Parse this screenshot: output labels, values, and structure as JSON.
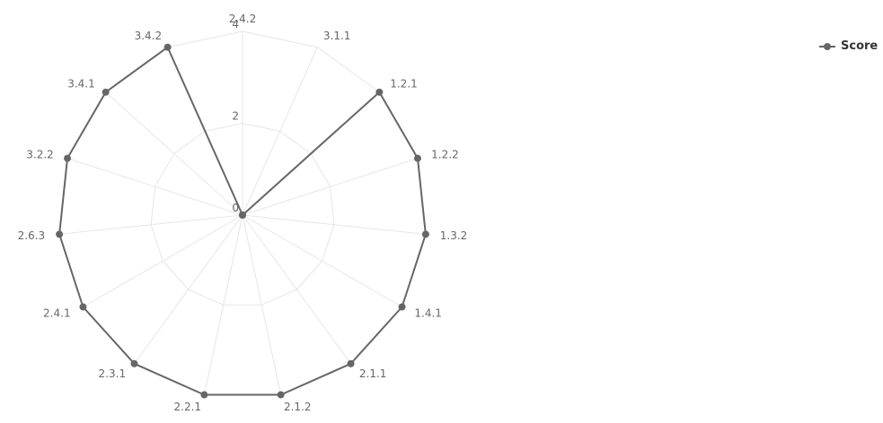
{
  "chart_data": {
    "type": "radar",
    "categories": [
      "2.4.2",
      "3.1.1",
      "1.2.1",
      "1.2.2",
      "1.3.2",
      "1.4.1",
      "2.1.1",
      "2.1.2",
      "2.2.1",
      "2.3.1",
      "2.4.1",
      "2.6.3",
      "3.2.2",
      "3.4.1",
      "3.4.2"
    ],
    "series": [
      {
        "name": "Score",
        "values": [
          0,
          0,
          4,
          4,
          4,
          4,
          4,
          4,
          4,
          4,
          4,
          4,
          4,
          4,
          4
        ]
      }
    ],
    "radial_ticks": [
      "0",
      "2",
      "4"
    ],
    "rlim": [
      0,
      4
    ],
    "grid": true,
    "legend_position": "top-right",
    "colors": {
      "series": "#666666",
      "grid": "#e6e6e6"
    }
  }
}
